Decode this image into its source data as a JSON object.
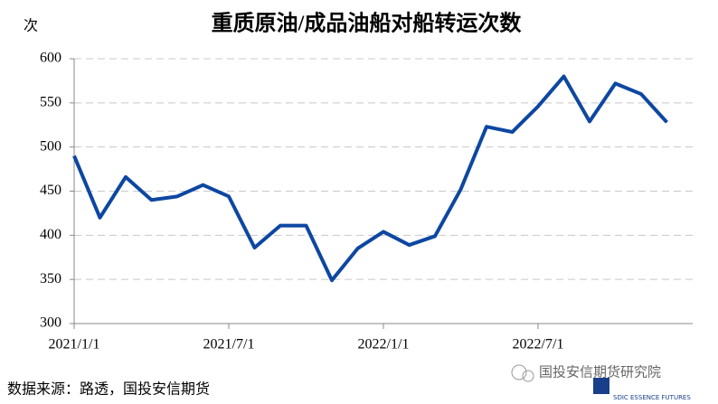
{
  "chart_data": {
    "type": "line",
    "title": "重质原油/成品油船对船转运次数",
    "y_unit": "次",
    "categories": [
      "2021/1/1",
      null,
      null,
      null,
      null,
      null,
      "2021/7/1",
      null,
      null,
      null,
      null,
      null,
      "2022/1/1",
      null,
      null,
      null,
      null,
      null,
      "2022/7/1",
      null,
      null,
      null,
      null,
      null
    ],
    "series": [
      {
        "name": "转运次数",
        "color": "#0d47a1",
        "values": [
          490,
          420,
          466,
          440,
          444,
          457,
          444,
          386,
          411,
          411,
          349,
          385,
          404,
          389,
          399,
          452,
          523,
          517,
          546,
          580,
          529,
          572,
          560,
          528
        ]
      }
    ],
    "ylim": [
      300,
      600
    ],
    "yticks": [
      300,
      350,
      400,
      450,
      500,
      550,
      600
    ],
    "grid": true,
    "source": "数据来源：路透，国投安信期货",
    "watermark": "国投安信期货研究院",
    "logo_text": "SDIC ESSENCE FUTURES"
  }
}
